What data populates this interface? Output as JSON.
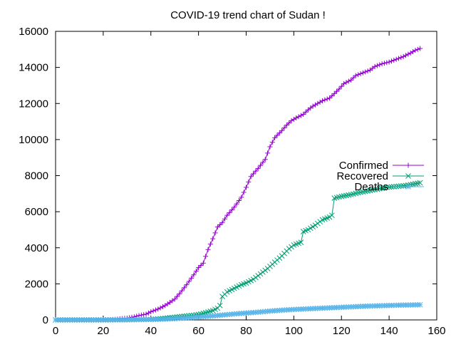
{
  "chart_data": {
    "type": "line",
    "title": "COVID-19 trend chart of Sudan !",
    "xlabel": "",
    "ylabel": "",
    "xlim": [
      0,
      160
    ],
    "ylim": [
      0,
      16000
    ],
    "xticks": [
      0,
      20,
      40,
      60,
      80,
      100,
      120,
      140,
      160
    ],
    "yticks": [
      0,
      2000,
      4000,
      6000,
      8000,
      10000,
      12000,
      14000,
      16000
    ],
    "grid": false,
    "legend_position": "right",
    "series": [
      {
        "name": "Confirmed",
        "color": "#9400d3",
        "marker": "plus",
        "points": [
          [
            0,
            0
          ],
          [
            10,
            2
          ],
          [
            20,
            10
          ],
          [
            25,
            30
          ],
          [
            30,
            100
          ],
          [
            33,
            170
          ],
          [
            35,
            240
          ],
          [
            38,
            320
          ],
          [
            40,
            450
          ],
          [
            43,
            600
          ],
          [
            46,
            800
          ],
          [
            50,
            1150
          ],
          [
            52,
            1450
          ],
          [
            55,
            1950
          ],
          [
            58,
            2500
          ],
          [
            60,
            2900
          ],
          [
            62,
            3150
          ],
          [
            64,
            3900
          ],
          [
            66,
            4500
          ],
          [
            68,
            5150
          ],
          [
            70,
            5400
          ],
          [
            72,
            5800
          ],
          [
            75,
            6250
          ],
          [
            78,
            6800
          ],
          [
            80,
            7350
          ],
          [
            82,
            7950
          ],
          [
            85,
            8400
          ],
          [
            88,
            8900
          ],
          [
            90,
            9600
          ],
          [
            92,
            10100
          ],
          [
            95,
            10500
          ],
          [
            97,
            10800
          ],
          [
            99,
            11050
          ],
          [
            101,
            11200
          ],
          [
            104,
            11400
          ],
          [
            106,
            11650
          ],
          [
            108,
            11850
          ],
          [
            110,
            12000
          ],
          [
            112,
            12150
          ],
          [
            115,
            12300
          ],
          [
            117,
            12550
          ],
          [
            119,
            12800
          ],
          [
            121,
            13100
          ],
          [
            124,
            13300
          ],
          [
            126,
            13550
          ],
          [
            129,
            13700
          ],
          [
            132,
            13850
          ],
          [
            134,
            14050
          ],
          [
            137,
            14200
          ],
          [
            140,
            14300
          ],
          [
            143,
            14450
          ],
          [
            146,
            14600
          ],
          [
            149,
            14800
          ],
          [
            151,
            14950
          ],
          [
            153,
            15050
          ]
        ]
      },
      {
        "name": "Recovered",
        "color": "#009e73",
        "marker": "cross",
        "points": [
          [
            0,
            0
          ],
          [
            20,
            0
          ],
          [
            30,
            5
          ],
          [
            40,
            30
          ],
          [
            45,
            80
          ],
          [
            50,
            150
          ],
          [
            55,
            220
          ],
          [
            58,
            260
          ],
          [
            60,
            300
          ],
          [
            63,
            400
          ],
          [
            66,
            520
          ],
          [
            68,
            650
          ],
          [
            69,
            800
          ],
          [
            70,
            1300
          ],
          [
            72,
            1550
          ],
          [
            75,
            1750
          ],
          [
            78,
            1950
          ],
          [
            80,
            2050
          ],
          [
            83,
            2250
          ],
          [
            86,
            2550
          ],
          [
            89,
            2850
          ],
          [
            92,
            3200
          ],
          [
            95,
            3550
          ],
          [
            98,
            3950
          ],
          [
            100,
            4150
          ],
          [
            102,
            4250
          ],
          [
            103,
            4300
          ],
          [
            104,
            4900
          ],
          [
            106,
            5000
          ],
          [
            109,
            5250
          ],
          [
            112,
            5550
          ],
          [
            115,
            5700
          ],
          [
            116,
            5800
          ],
          [
            117,
            6750
          ],
          [
            120,
            6850
          ],
          [
            124,
            6950
          ],
          [
            127,
            7050
          ],
          [
            131,
            7150
          ],
          [
            135,
            7250
          ],
          [
            139,
            7350
          ],
          [
            143,
            7400
          ],
          [
            147,
            7450
          ],
          [
            151,
            7550
          ],
          [
            153,
            7600
          ]
        ]
      },
      {
        "name": "Deaths",
        "color": "#56b4e9",
        "marker": "star",
        "points": [
          [
            0,
            0
          ],
          [
            20,
            1
          ],
          [
            30,
            10
          ],
          [
            40,
            25
          ],
          [
            45,
            40
          ],
          [
            50,
            70
          ],
          [
            55,
            110
          ],
          [
            60,
            160
          ],
          [
            65,
            210
          ],
          [
            70,
            270
          ],
          [
            75,
            330
          ],
          [
            80,
            380
          ],
          [
            85,
            430
          ],
          [
            90,
            490
          ],
          [
            95,
            540
          ],
          [
            100,
            580
          ],
          [
            105,
            610
          ],
          [
            110,
            640
          ],
          [
            115,
            670
          ],
          [
            120,
            700
          ],
          [
            125,
            730
          ],
          [
            130,
            760
          ],
          [
            135,
            780
          ],
          [
            140,
            800
          ],
          [
            145,
            820
          ],
          [
            150,
            830
          ],
          [
            153,
            840
          ]
        ]
      }
    ]
  }
}
